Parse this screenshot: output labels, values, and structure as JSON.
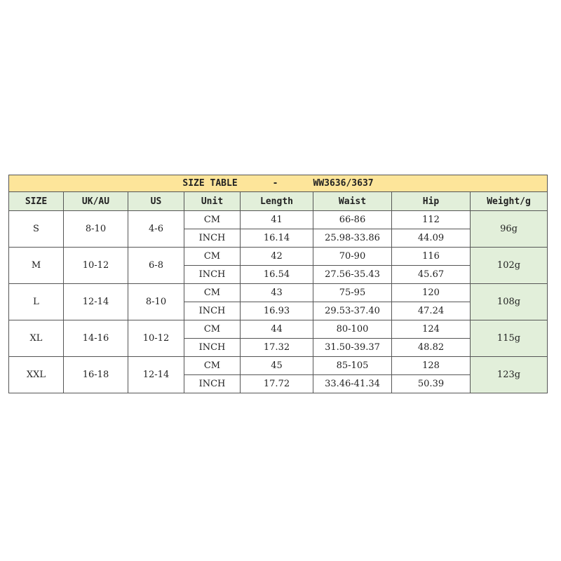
{
  "title": {
    "label": "SIZE TABLE",
    "separator": "-",
    "model": "WW3636/3637"
  },
  "colors": {
    "title_bg": "#fde59a",
    "header_bg": "#e2efda",
    "weight_bg": "#e2efda"
  },
  "headers": [
    "SIZE",
    "UK/AU",
    "US",
    "Unit",
    "Length",
    "Waist",
    "Hip",
    "Weight/g"
  ],
  "rows": [
    {
      "size": "S",
      "uk": "8-10",
      "us": "4-6",
      "weight": "96g",
      "cm": {
        "unit": "CM",
        "length": "41",
        "waist": "66-86",
        "hip": "112"
      },
      "inch": {
        "unit": "INCH",
        "length": "16.14",
        "waist": "25.98-33.86",
        "hip": "44.09"
      }
    },
    {
      "size": "M",
      "uk": "10-12",
      "us": "6-8",
      "weight": "102g",
      "cm": {
        "unit": "CM",
        "length": "42",
        "waist": "70-90",
        "hip": "116"
      },
      "inch": {
        "unit": "INCH",
        "length": "16.54",
        "waist": "27.56-35.43",
        "hip": "45.67"
      }
    },
    {
      "size": "L",
      "uk": "12-14",
      "us": "8-10",
      "weight": "108g",
      "cm": {
        "unit": "CM",
        "length": "43",
        "waist": "75-95",
        "hip": "120"
      },
      "inch": {
        "unit": "INCH",
        "length": "16.93",
        "waist": "29.53-37.40",
        "hip": "47.24"
      }
    },
    {
      "size": "XL",
      "uk": "14-16",
      "us": "10-12",
      "weight": "115g",
      "cm": {
        "unit": "CM",
        "length": "44",
        "waist": "80-100",
        "hip": "124"
      },
      "inch": {
        "unit": "INCH",
        "length": "17.32",
        "waist": "31.50-39.37",
        "hip": "48.82"
      }
    },
    {
      "size": "XXL",
      "uk": "16-18",
      "us": "12-14",
      "weight": "123g",
      "cm": {
        "unit": "CM",
        "length": "45",
        "waist": "85-105",
        "hip": "128"
      },
      "inch": {
        "unit": "INCH",
        "length": "17.72",
        "waist": "33.46-41.34",
        "hip": "50.39"
      }
    }
  ]
}
